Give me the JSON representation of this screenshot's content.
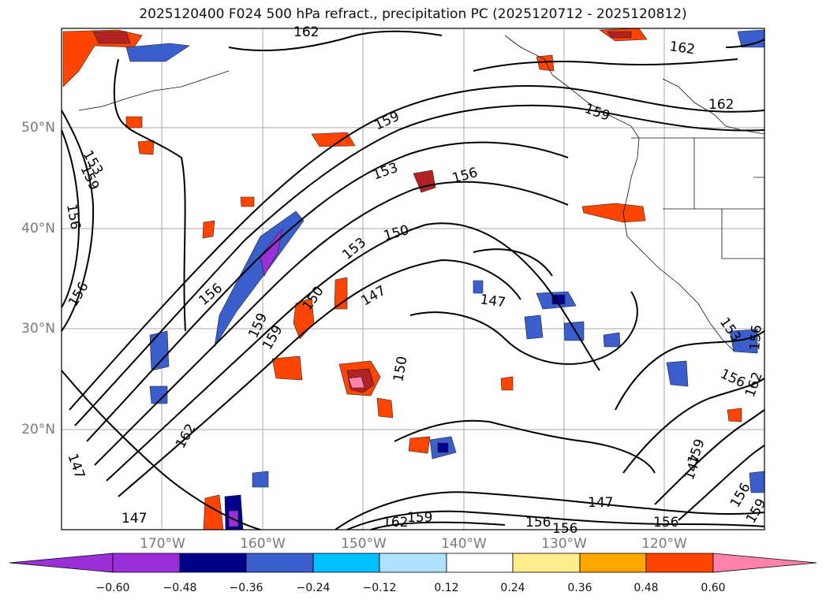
{
  "title": "2025120400 F024 500 hPa refract., precipitation PC (2025120712 - 2025120812)",
  "lat_labels": [
    "50°N",
    "40°N",
    "30°N",
    "20°N"
  ],
  "lon_labels": [
    "170°W",
    "160°W",
    "150°W",
    "140°W",
    "130°W",
    "120°W"
  ],
  "contour_labels": [
    "162",
    "162",
    "162",
    "159",
    "159",
    "153",
    "156",
    "153",
    "159",
    "156",
    "156",
    "156",
    "153",
    "150",
    "150",
    "147",
    "147",
    "150",
    "159",
    "162",
    "147",
    "147",
    "162",
    "159",
    "156",
    "156",
    "147",
    "147",
    "156",
    "159",
    "156",
    "153",
    "156",
    "162",
    "159",
    "156",
    "159"
  ],
  "colorbar": {
    "colors": [
      "#9b30d9",
      "#00008b",
      "#3a5fcd",
      "#00bfff",
      "#b0e2ff",
      "#ffffff",
      "#ffec8b",
      "#ffa500",
      "#ff4500",
      "#b22222",
      "#ff82ab"
    ],
    "tick_labels": [
      "−0.60",
      "−0.48",
      "−0.36",
      "−0.24",
      "−0.12",
      "0.12",
      "0.24",
      "0.36",
      "0.48",
      "0.60"
    ]
  }
}
